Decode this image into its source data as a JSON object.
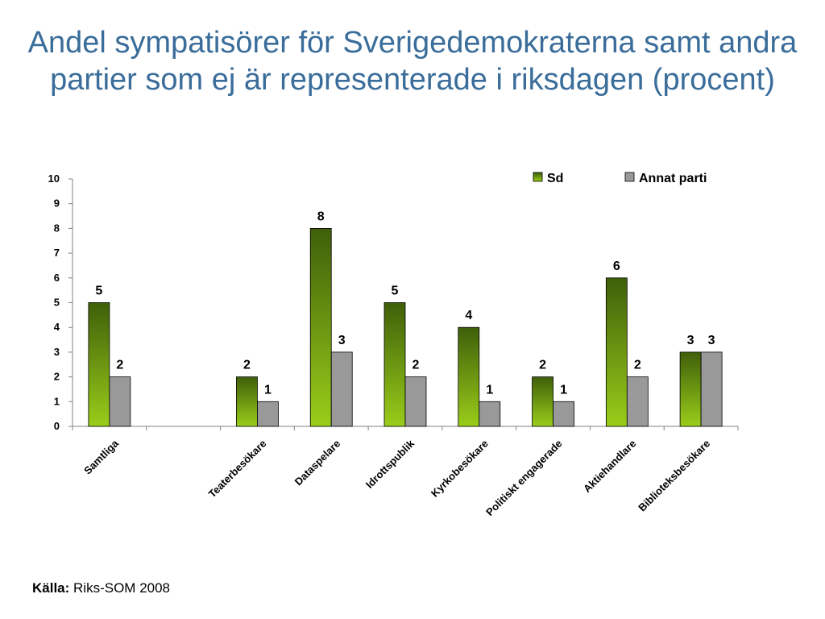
{
  "title": "Andel sympatisörer för Sverigedemokraterna samt andra partier som ej är representerade i riksdagen (procent)",
  "source": {
    "label": "Källa:",
    "text": "Riks-SOM 2008"
  },
  "colors": {
    "sd_dark": "#3f5f0a",
    "sd_light": "#9acd1a",
    "annat": "#999999",
    "title": "#3a6d9a"
  },
  "chart_data": {
    "type": "bar",
    "categories": [
      "Samtliga",
      "",
      "Teaterbesökare",
      "Dataspelare",
      "Idrottspublik",
      "Kyrkobesökare",
      "Politiskt engagerade",
      "Aktiehandlare",
      "Biblioteksbesökare"
    ],
    "series": [
      {
        "name": "Sd",
        "values": [
          5,
          null,
          2,
          8,
          5,
          4,
          2,
          6,
          3
        ]
      },
      {
        "name": "Annat parti",
        "values": [
          2,
          null,
          1,
          3,
          2,
          1,
          1,
          2,
          3
        ]
      }
    ],
    "ylim": [
      0,
      10
    ],
    "yticks": [
      0,
      1,
      2,
      3,
      4,
      5,
      6,
      7,
      8,
      9,
      10
    ],
    "legend": "top-right",
    "grid": false
  }
}
